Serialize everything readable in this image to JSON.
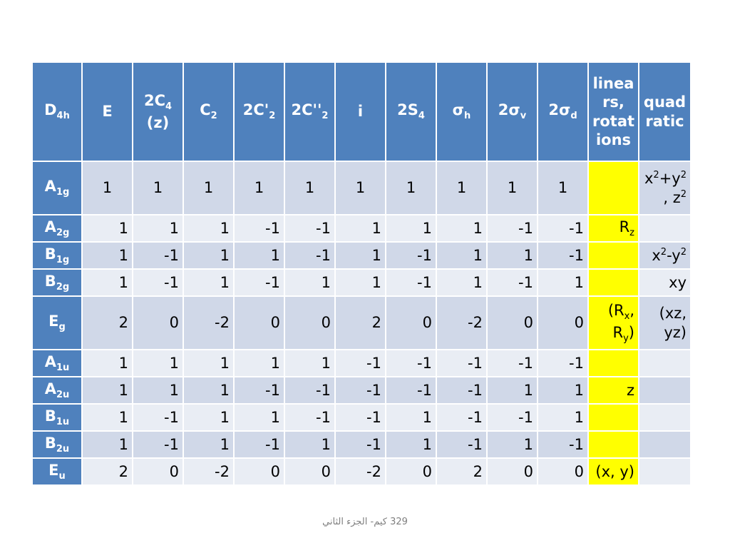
{
  "colors": {
    "header_bg": "#4f81bd",
    "row_odd": "#d0d8e8",
    "row_even": "#e9edf4",
    "highlight": "#ffff00"
  },
  "table": {
    "header": [
      [
        {
          "t": "D"
        },
        {
          "t": "4h",
          "sub": true
        }
      ],
      [
        {
          "t": "E"
        }
      ],
      [
        {
          "t": "2C"
        },
        {
          "t": "4",
          "sub": true
        },
        {
          "t": " (z)"
        }
      ],
      [
        {
          "t": "C"
        },
        {
          "t": "2",
          "sub": true
        }
      ],
      [
        {
          "t": "2C'"
        },
        {
          "t": "2",
          "sub": true
        }
      ],
      [
        {
          "t": "2C''"
        },
        {
          "t": "2",
          "sub": true
        }
      ],
      [
        {
          "t": "i"
        }
      ],
      [
        {
          "t": "2S"
        },
        {
          "t": "4",
          "sub": true
        }
      ],
      [
        {
          "t": "σ"
        },
        {
          "t": "h",
          "sub": true
        }
      ],
      [
        {
          "t": "2σ"
        },
        {
          "t": "v",
          "sub": true
        }
      ],
      [
        {
          "t": "2σ"
        },
        {
          "t": "d",
          "sub": true
        }
      ],
      [
        {
          "t": "linea rs, rotat ions"
        }
      ],
      [
        {
          "t": "quad ratic"
        }
      ]
    ],
    "rows": [
      {
        "label": [
          {
            "t": "A"
          },
          {
            "t": "1g",
            "sub": true
          }
        ],
        "values": [
          "1",
          "1",
          "1",
          "1",
          "1",
          "1",
          "1",
          "1",
          "1",
          "1"
        ],
        "center": true,
        "tall": true,
        "linear": [],
        "quadratic": [
          {
            "t": "x"
          },
          {
            "t": "2",
            "sup": true
          },
          {
            "t": "+y"
          },
          {
            "t": "2",
            "sup": true
          },
          {
            "t": " , z"
          },
          {
            "t": "2",
            "sup": true
          }
        ]
      },
      {
        "label": [
          {
            "t": "A"
          },
          {
            "t": "2g",
            "sub": true
          }
        ],
        "values": [
          "1",
          "1",
          "1",
          "-1",
          "-1",
          "1",
          "1",
          "1",
          "-1",
          "-1"
        ],
        "linear": [
          {
            "t": "R"
          },
          {
            "t": "z",
            "sub": true
          }
        ],
        "quadratic": []
      },
      {
        "label": [
          {
            "t": "B"
          },
          {
            "t": "1g",
            "sub": true
          }
        ],
        "values": [
          "1",
          "-1",
          "1",
          "1",
          "-1",
          "1",
          "-1",
          "1",
          "1",
          "-1"
        ],
        "linear": [],
        "quadratic": [
          {
            "t": "x"
          },
          {
            "t": "2",
            "sup": true
          },
          {
            "t": "-y"
          },
          {
            "t": "2",
            "sup": true
          }
        ]
      },
      {
        "label": [
          {
            "t": "B"
          },
          {
            "t": "2g",
            "sub": true
          }
        ],
        "values": [
          "1",
          "-1",
          "1",
          "-1",
          "1",
          "1",
          "-1",
          "1",
          "-1",
          "1"
        ],
        "linear": [],
        "quadratic": [
          {
            "t": "xy"
          }
        ]
      },
      {
        "label": [
          {
            "t": "E"
          },
          {
            "t": "g",
            "sub": true
          }
        ],
        "values": [
          "2",
          "0",
          "-2",
          "0",
          "0",
          "2",
          "0",
          "-2",
          "0",
          "0"
        ],
        "tall": true,
        "linear": [
          {
            "t": "(R"
          },
          {
            "t": "x",
            "sub": true
          },
          {
            "t": ", R"
          },
          {
            "t": "y",
            "sub": true
          },
          {
            "t": ")"
          }
        ],
        "quadratic": [
          {
            "t": "(xz, yz)"
          }
        ]
      },
      {
        "label": [
          {
            "t": "A"
          },
          {
            "t": "1u",
            "sub": true
          }
        ],
        "values": [
          "1",
          "1",
          "1",
          "1",
          "1",
          "-1",
          "-1",
          "-1",
          "-1",
          "-1"
        ],
        "linear": [],
        "quadratic": []
      },
      {
        "label": [
          {
            "t": "A"
          },
          {
            "t": "2u",
            "sub": true
          }
        ],
        "values": [
          "1",
          "1",
          "1",
          "-1",
          "-1",
          "-1",
          "-1",
          "-1",
          "1",
          "1"
        ],
        "linear": [
          {
            "t": "z"
          }
        ],
        "quadratic": []
      },
      {
        "label": [
          {
            "t": "B"
          },
          {
            "t": "1u",
            "sub": true
          }
        ],
        "values": [
          "1",
          "-1",
          "1",
          "1",
          "-1",
          "-1",
          "1",
          "-1",
          "-1",
          "1"
        ],
        "linear": [],
        "quadratic": []
      },
      {
        "label": [
          {
            "t": "B"
          },
          {
            "t": "2u",
            "sub": true
          }
        ],
        "values": [
          "1",
          "-1",
          "1",
          "-1",
          "1",
          "-1",
          "1",
          "-1",
          "1",
          "-1"
        ],
        "linear": [],
        "quadratic": []
      },
      {
        "label": [
          {
            "t": "E"
          },
          {
            "t": "u",
            "sub": true
          }
        ],
        "values": [
          "2",
          "0",
          "-2",
          "0",
          "0",
          "-2",
          "0",
          "2",
          "0",
          "0"
        ],
        "linear": [
          {
            "t": "(x, y)"
          }
        ],
        "quadratic": []
      }
    ]
  },
  "footer": "329 كيم- الجزء الثاني"
}
